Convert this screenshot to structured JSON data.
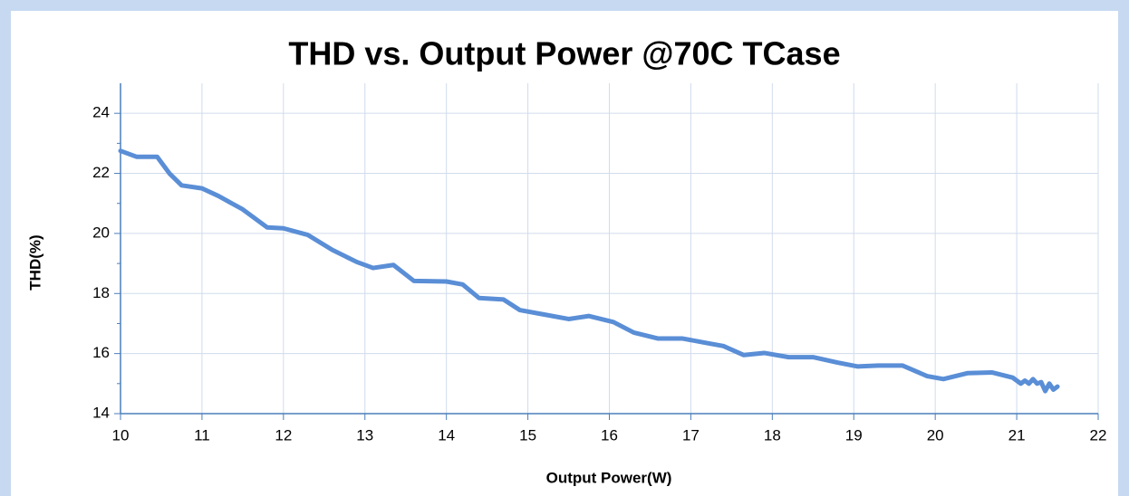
{
  "chart_data": {
    "type": "line",
    "title": "THD vs. Output Power @70C TCase",
    "x_label": "Output Power(W)",
    "y_label": "THD(%)",
    "xlim": [
      10,
      22
    ],
    "xticks": [
      10,
      11,
      12,
      13,
      14,
      15,
      16,
      17,
      18,
      19,
      20,
      21,
      22
    ],
    "ylim": [
      14,
      25
    ],
    "yticks": [
      14,
      16,
      18,
      20,
      22,
      24
    ],
    "grid": true,
    "series": [
      {
        "name": "THD",
        "color": "#5a8ed6",
        "x": [
          10,
          10.2,
          10.45,
          10.6,
          10.75,
          11,
          11.2,
          11.5,
          11.8,
          12,
          12.3,
          12.6,
          12.9,
          13.1,
          13.35,
          13.6,
          14,
          14.2,
          14.4,
          14.7,
          14.9,
          15.2,
          15.5,
          15.75,
          16.05,
          16.3,
          16.6,
          16.9,
          17.2,
          17.4,
          17.65,
          17.9,
          18.2,
          18.5,
          18.8,
          19.05,
          19.3,
          19.6,
          19.9,
          20.1,
          20.4,
          20.7,
          20.95,
          21.05,
          21.1,
          21.15,
          21.2,
          21.25,
          21.3,
          21.35,
          21.4,
          21.45,
          21.5
        ],
        "values": [
          22.75,
          22.55,
          22.55,
          22.0,
          21.6,
          21.5,
          21.25,
          20.8,
          20.2,
          20.17,
          19.95,
          19.45,
          19.05,
          18.85,
          18.95,
          18.42,
          18.4,
          18.3,
          17.85,
          17.8,
          17.45,
          17.3,
          17.15,
          17.25,
          17.05,
          16.7,
          16.5,
          16.5,
          16.35,
          16.25,
          15.95,
          16.02,
          15.88,
          15.88,
          15.7,
          15.57,
          15.6,
          15.6,
          15.25,
          15.15,
          15.35,
          15.37,
          15.2,
          15.0,
          15.1,
          15.0,
          15.15,
          15.0,
          15.05,
          14.75,
          15.0,
          14.8,
          14.9
        ]
      }
    ]
  }
}
